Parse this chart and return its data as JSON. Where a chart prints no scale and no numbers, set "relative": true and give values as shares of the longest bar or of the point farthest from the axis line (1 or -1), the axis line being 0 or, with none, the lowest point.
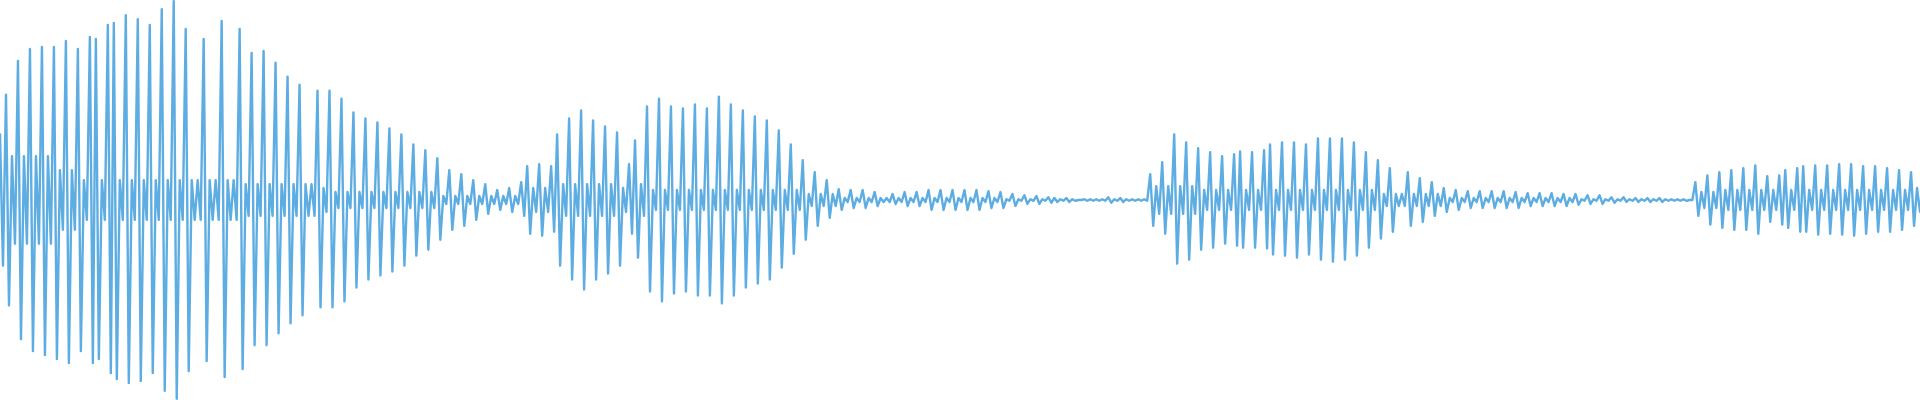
{
  "chart_data": {
    "type": "line",
    "relative": true,
    "color": "#5dade2",
    "categories": [
      null,
      null,
      null,
      null,
      null,
      null,
      null,
      null,
      null,
      null,
      null,
      null,
      null,
      null,
      null,
      null,
      null,
      null,
      null,
      null,
      null,
      null,
      null,
      null,
      null,
      null,
      null,
      null,
      null,
      null,
      null,
      null,
      null,
      null,
      null,
      null,
      null,
      null,
      null,
      null,
      null,
      null,
      null,
      null,
      null,
      null,
      null,
      null,
      null,
      null,
      null,
      null,
      null,
      null,
      null,
      null,
      null,
      null,
      null,
      null,
      null,
      null,
      null,
      null,
      null,
      null,
      null,
      null,
      null,
      null,
      null,
      null,
      null,
      null,
      null,
      null,
      null,
      null,
      null,
      null,
      null,
      null,
      null,
      null,
      null,
      null,
      null,
      null,
      null,
      null,
      null,
      null,
      null,
      null,
      null,
      null,
      null,
      null,
      null,
      null,
      null,
      null,
      null,
      null,
      null,
      null,
      null,
      null,
      null,
      null,
      null,
      null,
      null,
      null,
      null,
      null,
      null,
      null,
      null,
      null,
      null,
      null,
      null,
      null,
      null,
      null,
      null,
      null,
      null,
      null,
      null,
      null,
      null,
      null,
      null,
      null,
      null,
      null,
      null,
      null,
      null,
      null,
      null,
      null,
      null,
      null,
      null,
      null,
      null,
      null,
      null,
      null,
      null,
      null,
      null,
      null,
      null,
      null,
      null,
      null,
      null,
      null,
      null,
      null,
      null,
      null,
      null,
      null,
      null,
      null,
      null,
      null,
      null,
      null,
      null,
      null,
      null,
      null,
      null,
      null,
      null,
      null,
      null,
      null,
      null,
      null,
      null,
      null,
      null,
      null,
      null,
      null,
      null,
      null,
      null,
      null,
      null,
      null,
      null,
      null,
      null,
      null,
      null,
      null,
      null,
      null,
      null,
      null,
      null,
      null,
      null,
      null,
      null,
      null,
      null,
      null,
      null,
      null,
      null,
      null,
      null,
      null,
      null,
      null,
      null,
      null,
      null,
      null,
      null,
      null,
      null,
      null,
      null,
      null,
      null,
      null,
      null,
      null,
      null,
      null,
      null,
      null,
      null,
      null,
      null,
      null,
      null,
      null,
      null,
      null,
      null,
      null,
      null,
      null,
      null,
      null,
      null,
      null,
      null,
      null,
      null,
      null,
      null,
      null,
      null,
      null,
      null,
      null,
      null,
      null,
      null,
      null,
      null,
      null,
      null,
      null,
      null,
      null,
      null,
      null,
      null,
      null,
      null,
      null,
      null,
      null,
      null,
      null,
      null,
      null,
      null,
      null,
      null,
      null,
      null,
      null,
      null,
      null,
      null,
      null,
      null,
      null,
      null,
      null,
      null,
      null,
      null,
      null,
      null,
      null,
      null,
      null,
      null,
      null,
      null,
      null,
      null,
      null,
      null,
      null,
      null,
      null,
      null,
      null,
      null,
      null,
      null,
      null,
      null,
      null,
      null,
      null,
      null,
      null,
      null,
      null,
      null,
      null,
      null,
      null,
      null,
      null,
      null,
      null,
      null,
      null,
      null,
      null,
      null,
      null,
      null,
      null,
      null,
      null,
      null,
      null,
      null,
      null,
      null,
      null,
      null,
      null,
      null,
      null,
      null,
      null,
      null,
      null,
      null,
      null,
      null,
      null,
      null,
      null,
      null,
      null,
      null,
      null,
      null,
      null,
      null,
      null,
      null,
      null,
      null,
      null,
      null,
      null,
      null,
      null,
      null,
      null,
      null,
      null,
      null,
      null,
      null,
      null,
      null,
      null,
      null,
      null,
      null,
      null,
      null,
      null,
      null,
      null,
      null,
      null,
      null,
      null,
      null,
      null,
      null,
      null,
      null,
      null,
      null,
      null,
      null,
      null,
      null,
      null,
      null,
      null,
      null,
      null,
      null,
      null,
      null,
      null,
      null,
      null,
      null,
      null,
      null,
      null,
      null,
      null,
      null,
      null,
      null,
      null,
      null,
      null,
      null,
      null,
      null,
      null,
      null,
      null,
      null,
      null,
      null,
      null,
      null,
      null,
      null,
      null,
      null,
      null,
      null,
      null,
      null,
      null,
      null,
      null,
      null,
      null,
      null,
      null,
      null,
      null,
      null,
      null,
      null,
      null,
      null,
      null,
      null,
      null,
      null,
      null,
      null,
      null,
      null,
      null,
      null,
      null,
      null,
      null,
      null,
      null,
      null,
      null,
      null,
      null,
      null,
      null,
      null,
      null,
      null,
      null,
      null,
      null,
      null,
      null,
      null,
      null,
      null,
      null,
      null,
      null,
      null,
      null,
      null,
      null,
      null,
      null,
      null,
      null,
      null,
      null,
      null,
      null,
      null,
      null,
      null,
      null,
      null,
      null,
      null,
      null,
      null,
      null,
      null,
      null,
      null,
      null,
      null,
      null,
      null,
      null,
      null,
      null,
      null,
      null,
      null,
      null,
      null,
      null,
      null,
      null,
      null,
      null,
      null,
      null,
      null,
      null,
      null,
      null,
      null,
      null,
      null,
      null,
      null,
      null,
      null,
      null,
      null,
      null,
      null,
      null,
      null,
      null,
      null,
      null,
      null,
      null,
      null,
      null,
      null,
      null,
      null,
      null,
      null,
      null,
      null,
      null,
      null,
      null,
      null,
      null,
      null,
      null,
      null,
      null,
      null,
      null,
      null,
      null,
      null,
      null,
      null,
      null,
      null,
      null,
      null,
      null,
      null,
      null,
      null,
      null,
      null,
      null,
      null,
      null,
      null,
      null,
      null,
      null,
      null,
      null,
      null,
      null,
      null,
      null,
      null,
      null,
      null,
      null,
      null,
      null,
      null,
      null,
      null,
      null,
      null,
      null,
      null,
      null
    ],
    "values": [
      0.665,
      0.335,
      0.765,
      0.235,
      0.61,
      0.39,
      0.85,
      0.15,
      0.61,
      0.39,
      0.88,
      0.12,
      0.61,
      0.39,
      0.885,
      0.11,
      0.61,
      0.39,
      0.885,
      0.1,
      0.575,
      0.425,
      0.9,
      0.09,
      0.575,
      0.425,
      0.88,
      0.12,
      0.55,
      0.45,
      0.91,
      0.09,
      0.905,
      0.1,
      0.55,
      0.45,
      0.94,
      0.065,
      0.945,
      0.05,
      0.55,
      0.45,
      0.965,
      0.04,
      0.55,
      0.45,
      0.955,
      0.045,
      0.55,
      0.45,
      0.94,
      0.065,
      0.55,
      0.45,
      0.98,
      0.02,
      0.55,
      0.45,
      1,
      0,
      0.55,
      0.45,
      0.93,
      0.07,
      0.55,
      0.45,
      0.55,
      0.45,
      0.905,
      0.095,
      0.55,
      0.45,
      0.55,
      0.45,
      0.95,
      0.055,
      0.55,
      0.45,
      0.55,
      0.45,
      0.93,
      0.075,
      0.54,
      0.46,
      0.87,
      0.135,
      0.54,
      0.46,
      0.875,
      0.135,
      0.54,
      0.46,
      0.845,
      0.165,
      0.54,
      0.46,
      0.81,
      0.19,
      0.54,
      0.46,
      0.79,
      0.21,
      0.54,
      0.46,
      0.54,
      0.46,
      0.775,
      0.23,
      0.53,
      0.47,
      0.775,
      0.23,
      0.52,
      0.48,
      0.755,
      0.245,
      0.52,
      0.48,
      0.72,
      0.28,
      0.52,
      0.48,
      0.705,
      0.3,
      0.52,
      0.48,
      0.695,
      0.31,
      0.52,
      0.48,
      0.68,
      0.32,
      0.52,
      0.48,
      0.665,
      0.335,
      0.52,
      0.48,
      0.64,
      0.36,
      0.52,
      0.48,
      0.625,
      0.375,
      0.52,
      0.48,
      0.605,
      0.4,
      0.51,
      0.49,
      0.575,
      0.425,
      0.51,
      0.49,
      0.565,
      0.435,
      0.51,
      0.49,
      0.55,
      0.45,
      0.51,
      0.49,
      0.54,
      0.465,
      0.51,
      0.49,
      0.525,
      0.475,
      0.51,
      0.49,
      0.53,
      0.47,
      0.51,
      0.49,
      0.545,
      0.46,
      0.585,
      0.415,
      0.53,
      0.47,
      0.59,
      0.41,
      0.53,
      0.47,
      0.585,
      0.42,
      0.665,
      0.335,
      0.54,
      0.46,
      0.705,
      0.3,
      0.54,
      0.46,
      0.725,
      0.275,
      0.54,
      0.46,
      0.7,
      0.3,
      0.54,
      0.46,
      0.685,
      0.315,
      0.54,
      0.46,
      0.67,
      0.335,
      0.53,
      0.47,
      0.59,
      0.415,
      0.65,
      0.355,
      0.54,
      0.46,
      0.735,
      0.27,
      0.525,
      0.475,
      0.755,
      0.245,
      0.525,
      0.475,
      0.735,
      0.265,
      0.525,
      0.475,
      0.73,
      0.27,
      0.525,
      0.475,
      0.74,
      0.26,
      0.525,
      0.475,
      0.73,
      0.26,
      0.525,
      0.475,
      0.76,
      0.24,
      0.525,
      0.475,
      0.74,
      0.26,
      0.525,
      0.475,
      0.725,
      0.28,
      0.525,
      0.475,
      0.71,
      0.29,
      0.525,
      0.475,
      0.7,
      0.3,
      0.525,
      0.475,
      0.675,
      0.33,
      0.525,
      0.475,
      0.64,
      0.365,
      0.525,
      0.475,
      0.6,
      0.4,
      0.515,
      0.485,
      0.57,
      0.435,
      0.515,
      0.485,
      0.55,
      0.455,
      0.515,
      0.485,
      0.527,
      0.475,
      0.505,
      0.495,
      0.525,
      0.48,
      0.505,
      0.495,
      0.525,
      0.48,
      0.505,
      0.495,
      0.52,
      0.485,
      0.505,
      0.495,
      0.505,
      0.495,
      0.515,
      0.49,
      0.505,
      0.495,
      0.52,
      0.485,
      0.505,
      0.495,
      0.52,
      0.485,
      0.505,
      0.495,
      0.525,
      0.475,
      0.505,
      0.495,
      0.525,
      0.475,
      0.505,
      0.495,
      0.525,
      0.475,
      0.505,
      0.495,
      0.525,
      0.475,
      0.505,
      0.495,
      0.525,
      0.475,
      0.505,
      0.495,
      0.522,
      0.48,
      0.505,
      0.495,
      0.52,
      0.48,
      0.502,
      0.498,
      0.515,
      0.485,
      0.502,
      0.498,
      0.512,
      0.49,
      0.502,
      0.498,
      0.51,
      0.49,
      0.502,
      0.498,
      0.507,
      0.493,
      0.505,
      0.495,
      0.502,
      0.498,
      0.505,
      0.495,
      0.502,
      0.498,
      0.5,
      0.5,
      0.502,
      0.498,
      0.502,
      0.498,
      0.502,
      0.498,
      0.502,
      0.498,
      0.507,
      0.493,
      0.502,
      0.498,
      0.505,
      0.495,
      0.502,
      0.498,
      0.502,
      0.498,
      0.502,
      0.498,
      0.502,
      0.498,
      0.565,
      0.435,
      0.535,
      0.465,
      0.595,
      0.415,
      0.535,
      0.465,
      0.665,
      0.34,
      0.535,
      0.465,
      0.645,
      0.35,
      0.535,
      0.465,
      0.63,
      0.375,
      0.525,
      0.475,
      0.62,
      0.38,
      0.525,
      0.475,
      0.61,
      0.39,
      0.525,
      0.475,
      0.615,
      0.385,
      0.622,
      0.38,
      0.525,
      0.475,
      0.62,
      0.38,
      0.525,
      0.475,
      0.625,
      0.378,
      0.64,
      0.363,
      0.525,
      0.475,
      0.645,
      0.36,
      0.525,
      0.475,
      0.645,
      0.355,
      0.525,
      0.475,
      0.64,
      0.363,
      0.525,
      0.475,
      0.655,
      0.35,
      0.525,
      0.475,
      0.655,
      0.345,
      0.525,
      0.475,
      0.655,
      0.35,
      0.525,
      0.475,
      0.645,
      0.36,
      0.525,
      0.475,
      0.62,
      0.38,
      0.525,
      0.475,
      0.6,
      0.403,
      0.515,
      0.485,
      0.58,
      0.42,
      0.515,
      0.485,
      0.515,
      0.485,
      0.57,
      0.435,
      0.515,
      0.485,
      0.555,
      0.445,
      0.515,
      0.485,
      0.545,
      0.46,
      0.515,
      0.485,
      0.53,
      0.47,
      0.505,
      0.495,
      0.525,
      0.475,
      0.505,
      0.495,
      0.522,
      0.48,
      0.505,
      0.495,
      0.522,
      0.48,
      0.505,
      0.495,
      0.522,
      0.48,
      0.505,
      0.495,
      0.522,
      0.48,
      0.505,
      0.495,
      0.52,
      0.48,
      0.505,
      0.495,
      0.517,
      0.485,
      0.505,
      0.495,
      0.517,
      0.485,
      0.505,
      0.495,
      0.517,
      0.485,
      0.505,
      0.495,
      0.515,
      0.485,
      0.505,
      0.495,
      0.515,
      0.488,
      0.502,
      0.498,
      0.512,
      0.49,
      0.502,
      0.498,
      0.512,
      0.49,
      0.502,
      0.498,
      0.507,
      0.493,
      0.502,
      0.498,
      0.507,
      0.495,
      0.502,
      0.498,
      0.505,
      0.495,
      0.502,
      0.498,
      0.505,
      0.495,
      0.502,
      0.498,
      0.505,
      0.495,
      0.502,
      0.498,
      0.502,
      0.498,
      0.502,
      0.498,
      0.502,
      0.498,
      0.5,
      0.5,
      0.545,
      0.46,
      0.52,
      0.48,
      0.562,
      0.438,
      0.52,
      0.48,
      0.57,
      0.43,
      0.525,
      0.475,
      0.575,
      0.425,
      0.525,
      0.475,
      0.58,
      0.425,
      0.525,
      0.475,
      0.587,
      0.415,
      0.525,
      0.475,
      0.56,
      0.445,
      0.525,
      0.475,
      0.562,
      0.438,
      0.575,
      0.43,
      0.525,
      0.475,
      0.58,
      0.42,
      0.585,
      0.42,
      0.525,
      0.475,
      0.587,
      0.413,
      0.525,
      0.475,
      0.587,
      0.415,
      0.525,
      0.475,
      0.59,
      0.413,
      0.525,
      0.475,
      0.59,
      0.41,
      0.525,
      0.475,
      0.585,
      0.415,
      0.525,
      0.475,
      0.585,
      0.42,
      0.525,
      0.475,
      0.58,
      0.42,
      0.525,
      0.475,
      0.575,
      0.425,
      0.525,
      0.475,
      0.57,
      0.435,
      0.53,
      0.47
    ]
  }
}
